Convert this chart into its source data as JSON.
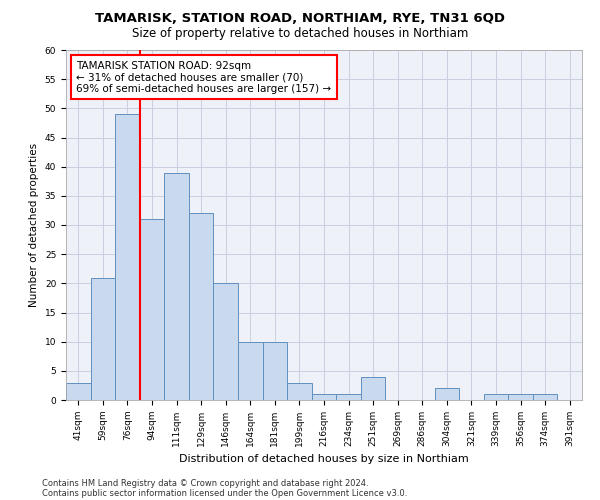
{
  "title1": "TAMARISK, STATION ROAD, NORTHIAM, RYE, TN31 6QD",
  "title2": "Size of property relative to detached houses in Northiam",
  "xlabel": "Distribution of detached houses by size in Northiam",
  "ylabel": "Number of detached properties",
  "categories": [
    "41sqm",
    "59sqm",
    "76sqm",
    "94sqm",
    "111sqm",
    "129sqm",
    "146sqm",
    "164sqm",
    "181sqm",
    "199sqm",
    "216sqm",
    "234sqm",
    "251sqm",
    "269sqm",
    "286sqm",
    "304sqm",
    "321sqm",
    "339sqm",
    "356sqm",
    "374sqm",
    "391sqm"
  ],
  "values": [
    3,
    21,
    49,
    31,
    39,
    32,
    20,
    10,
    10,
    3,
    1,
    1,
    4,
    0,
    0,
    2,
    0,
    1,
    1,
    1,
    0
  ],
  "bar_color": "#c9d9ee",
  "bar_edge_color": "#6090c0",
  "red_line_x": 2.5,
  "annotation_line1": "TAMARISK STATION ROAD: 92sqm",
  "annotation_line2": "← 31% of detached houses are smaller (70)",
  "annotation_line3": "69% of semi-detached houses are larger (157) →",
  "ylim": [
    0,
    60
  ],
  "yticks": [
    0,
    5,
    10,
    15,
    20,
    25,
    30,
    35,
    40,
    45,
    50,
    55,
    60
  ],
  "footer_line1": "Contains HM Land Registry data © Crown copyright and database right 2024.",
  "footer_line2": "Contains public sector information licensed under the Open Government Licence v3.0.",
  "bg_color": "#eef2f8",
  "grid_color": "#c8d0e0",
  "title1_fontsize": 9.5,
  "title2_fontsize": 8.5,
  "ylabel_fontsize": 7.5,
  "xlabel_fontsize": 8,
  "tick_fontsize": 6.5,
  "annotation_fontsize": 7.5,
  "footer_fontsize": 6
}
